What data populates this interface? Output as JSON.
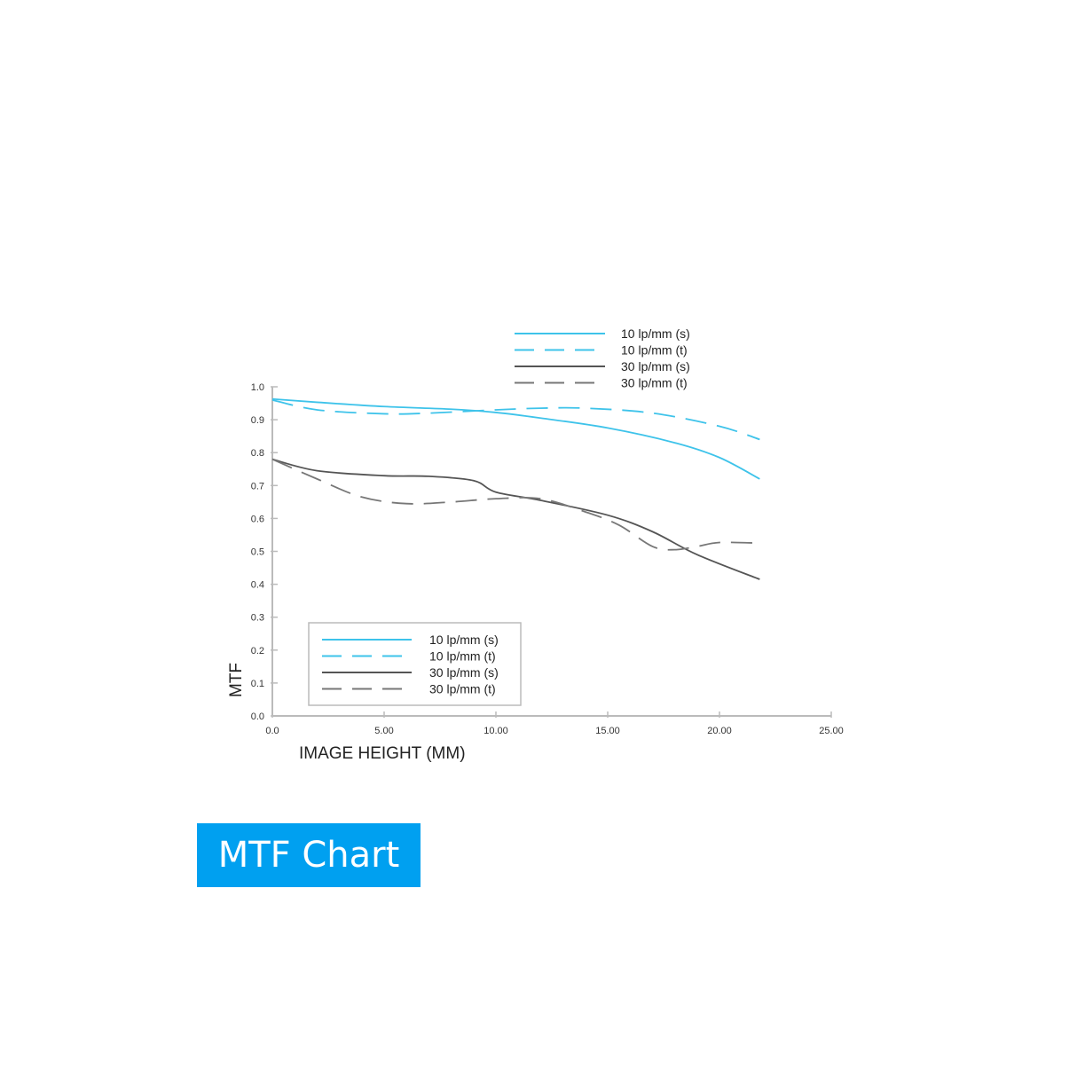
{
  "chart_data": {
    "type": "line",
    "title": "",
    "xlabel": "IMAGE HEIGHT (MM)",
    "ylabel": "MTF",
    "xlim": [
      0,
      25
    ],
    "ylim": [
      0,
      1.0
    ],
    "x_ticks": [
      "0.0",
      "5.00",
      "10.00",
      "15.00",
      "20.00",
      "25.00"
    ],
    "x_tick_values": [
      0,
      5,
      10,
      15,
      20,
      25
    ],
    "y_ticks": [
      "0.0",
      "0.1",
      "0.2",
      "0.3",
      "0.4",
      "0.5",
      "0.6",
      "0.7",
      "0.8",
      "0.9",
      "1.0"
    ],
    "y_tick_values": [
      0,
      0.1,
      0.2,
      0.3,
      0.4,
      0.5,
      0.6,
      0.7,
      0.8,
      0.9,
      1.0
    ],
    "grid": false,
    "legend_placement": [
      "top-right",
      "bottom-left"
    ],
    "series": [
      {
        "name": "10 lp/mm (s)",
        "color": "#3ec3ea",
        "dash": false,
        "x": [
          0,
          2,
          5,
          8,
          10,
          12,
          15,
          18,
          20,
          21.8
        ],
        "y": [
          0.963,
          0.953,
          0.94,
          0.932,
          0.922,
          0.905,
          0.875,
          0.83,
          0.785,
          0.72
        ]
      },
      {
        "name": "10 lp/mm (t)",
        "color": "#3ec3ea",
        "dash": true,
        "x": [
          0,
          2,
          5,
          7,
          10,
          12,
          14,
          17,
          20,
          21.8
        ],
        "y": [
          0.96,
          0.93,
          0.918,
          0.92,
          0.93,
          0.935,
          0.935,
          0.92,
          0.88,
          0.84
        ]
      },
      {
        "name": "30 lp/mm (s)",
        "color": "#555555",
        "dash": false,
        "x": [
          0,
          2,
          5,
          7,
          9,
          10,
          12,
          15,
          17,
          19,
          21.8
        ],
        "y": [
          0.78,
          0.745,
          0.73,
          0.728,
          0.715,
          0.68,
          0.655,
          0.61,
          0.56,
          0.49,
          0.415
        ]
      },
      {
        "name": "30 lp/mm (t)",
        "color": "#777777",
        "dash": true,
        "x": [
          0,
          2,
          4,
          6,
          8,
          10,
          12,
          14,
          15.5,
          17,
          18,
          19,
          20,
          21.8
        ],
        "y": [
          0.78,
          0.72,
          0.665,
          0.645,
          0.65,
          0.66,
          0.66,
          0.62,
          0.58,
          0.515,
          0.505,
          0.515,
          0.527,
          0.525
        ]
      }
    ]
  },
  "caption": "MTF Chart"
}
